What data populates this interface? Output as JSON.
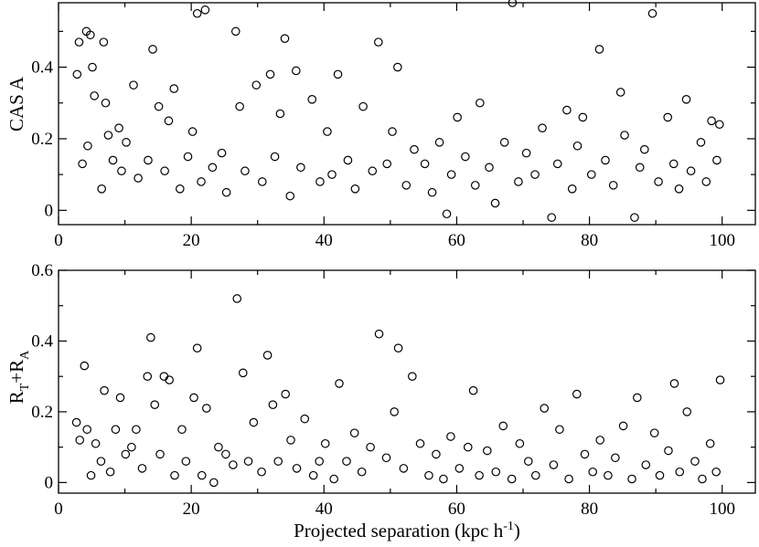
{
  "chart_data": [
    {
      "type": "scatter",
      "ylabel": "CAS A",
      "xlim": [
        0,
        105
      ],
      "ylim": [
        -0.04,
        0.58
      ],
      "xticks": [
        0,
        20,
        40,
        60,
        80,
        100
      ],
      "yticks": [
        0,
        0.2,
        0.4
      ],
      "x": [
        2.8,
        3.1,
        3.6,
        4.2,
        4.4,
        4.8,
        5.1,
        5.4,
        6.5,
        6.8,
        7.1,
        7.5,
        8.2,
        9.1,
        9.5,
        10.2,
        11.3,
        12.0,
        13.5,
        14.2,
        15.1,
        16.0,
        16.6,
        17.4,
        18.3,
        19.5,
        20.2,
        20.9,
        21.5,
        22.1,
        23.2,
        24.6,
        25.3,
        26.7,
        27.3,
        28.1,
        29.8,
        30.7,
        31.9,
        32.6,
        33.4,
        34.1,
        34.9,
        35.8,
        36.5,
        38.2,
        39.4,
        40.5,
        41.2,
        42.1,
        43.6,
        44.7,
        45.9,
        47.3,
        48.2,
        49.5,
        50.3,
        51.1,
        52.4,
        53.6,
        55.2,
        56.3,
        57.4,
        58.5,
        59.2,
        60.1,
        61.3,
        62.8,
        63.5,
        64.9,
        65.8,
        67.2,
        68.4,
        69.3,
        70.5,
        71.8,
        72.9,
        74.3,
        75.2,
        76.6,
        77.4,
        78.2,
        79.0,
        80.3,
        81.5,
        82.4,
        83.6,
        84.7,
        85.3,
        86.8,
        87.6,
        88.3,
        89.5,
        90.4,
        91.8,
        92.7,
        93.5,
        94.6,
        95.3,
        96.8,
        97.6,
        98.4,
        99.2,
        99.6
      ],
      "y": [
        0.38,
        0.47,
        0.13,
        0.5,
        0.18,
        0.49,
        0.4,
        0.32,
        0.06,
        0.47,
        0.3,
        0.21,
        0.14,
        0.23,
        0.11,
        0.19,
        0.35,
        0.09,
        0.14,
        0.45,
        0.29,
        0.11,
        0.25,
        0.34,
        0.06,
        0.15,
        0.22,
        0.55,
        0.08,
        0.56,
        0.12,
        0.16,
        0.05,
        0.5,
        0.29,
        0.11,
        0.35,
        0.08,
        0.38,
        0.15,
        0.27,
        0.48,
        0.04,
        0.39,
        0.12,
        0.31,
        0.08,
        0.22,
        0.1,
        0.38,
        0.14,
        0.06,
        0.29,
        0.11,
        0.47,
        0.13,
        0.22,
        0.4,
        0.07,
        0.17,
        0.13,
        0.05,
        0.19,
        -0.01,
        0.1,
        0.26,
        0.15,
        0.07,
        0.3,
        0.12,
        0.02,
        0.19,
        0.58,
        0.08,
        0.16,
        0.1,
        0.23,
        -0.02,
        0.13,
        0.28,
        0.06,
        0.18,
        0.26,
        0.1,
        0.45,
        0.14,
        0.07,
        0.33,
        0.21,
        -0.02,
        0.12,
        0.17,
        0.55,
        0.08,
        0.26,
        0.13,
        0.06,
        0.31,
        0.11,
        0.19,
        0.08,
        0.25,
        0.14,
        0.24
      ]
    },
    {
      "type": "scatter",
      "xlabel": "Projected separation (kpc h",
      "xlabel_superscript": "-1",
      "xlabel_close": ")",
      "ylabel_base": "R",
      "ylabel_sub1": "T",
      "ylabel_mid": "+R",
      "ylabel_sub2": "A",
      "xlim": [
        0,
        105
      ],
      "ylim": [
        -0.03,
        0.6
      ],
      "xticks": [
        0,
        20,
        40,
        60,
        80,
        100
      ],
      "yticks": [
        0,
        0.2,
        0.4,
        0.6
      ],
      "x": [
        2.7,
        3.2,
        3.9,
        4.3,
        4.9,
        5.6,
        6.4,
        6.9,
        7.8,
        8.6,
        9.3,
        10.1,
        11.0,
        11.7,
        12.6,
        13.4,
        13.9,
        14.5,
        15.3,
        15.9,
        16.7,
        17.5,
        18.6,
        19.2,
        20.4,
        20.9,
        21.6,
        22.3,
        23.4,
        24.1,
        25.2,
        26.3,
        26.9,
        27.8,
        28.6,
        29.4,
        30.6,
        31.5,
        32.3,
        33.1,
        34.2,
        35.0,
        35.9,
        37.1,
        38.4,
        39.3,
        40.2,
        41.5,
        42.3,
        43.4,
        44.6,
        45.7,
        47.0,
        48.3,
        49.4,
        50.6,
        51.2,
        52.0,
        53.3,
        54.5,
        55.8,
        56.9,
        58.0,
        59.1,
        60.4,
        61.7,
        62.5,
        63.4,
        64.6,
        65.9,
        67.0,
        68.3,
        69.5,
        70.8,
        71.9,
        73.2,
        74.6,
        75.5,
        76.9,
        78.1,
        79.3,
        80.5,
        81.6,
        82.8,
        83.9,
        85.1,
        86.4,
        87.2,
        88.5,
        89.8,
        90.6,
        91.9,
        92.8,
        93.6,
        94.7,
        95.9,
        97.0,
        98.2,
        99.1,
        99.7
      ],
      "y": [
        0.17,
        0.12,
        0.33,
        0.15,
        0.02,
        0.11,
        0.06,
        0.26,
        0.03,
        0.15,
        0.24,
        0.08,
        0.1,
        0.15,
        0.04,
        0.3,
        0.41,
        0.22,
        0.08,
        0.3,
        0.29,
        0.02,
        0.15,
        0.06,
        0.24,
        0.38,
        0.02,
        0.21,
        0.0,
        0.1,
        0.08,
        0.05,
        0.52,
        0.31,
        0.06,
        0.17,
        0.03,
        0.36,
        0.22,
        0.06,
        0.25,
        0.12,
        0.04,
        0.18,
        0.02,
        0.06,
        0.11,
        0.01,
        0.28,
        0.06,
        0.14,
        0.03,
        0.1,
        0.42,
        0.07,
        0.2,
        0.38,
        0.04,
        0.3,
        0.11,
        0.02,
        0.08,
        0.01,
        0.13,
        0.04,
        0.1,
        0.26,
        0.02,
        0.09,
        0.03,
        0.16,
        0.01,
        0.11,
        0.06,
        0.02,
        0.21,
        0.05,
        0.15,
        0.01,
        0.25,
        0.08,
        0.03,
        0.12,
        0.02,
        0.07,
        0.16,
        0.01,
        0.24,
        0.05,
        0.14,
        0.02,
        0.09,
        0.28,
        0.03,
        0.2,
        0.06,
        0.01,
        0.11,
        0.03,
        0.29
      ]
    }
  ]
}
